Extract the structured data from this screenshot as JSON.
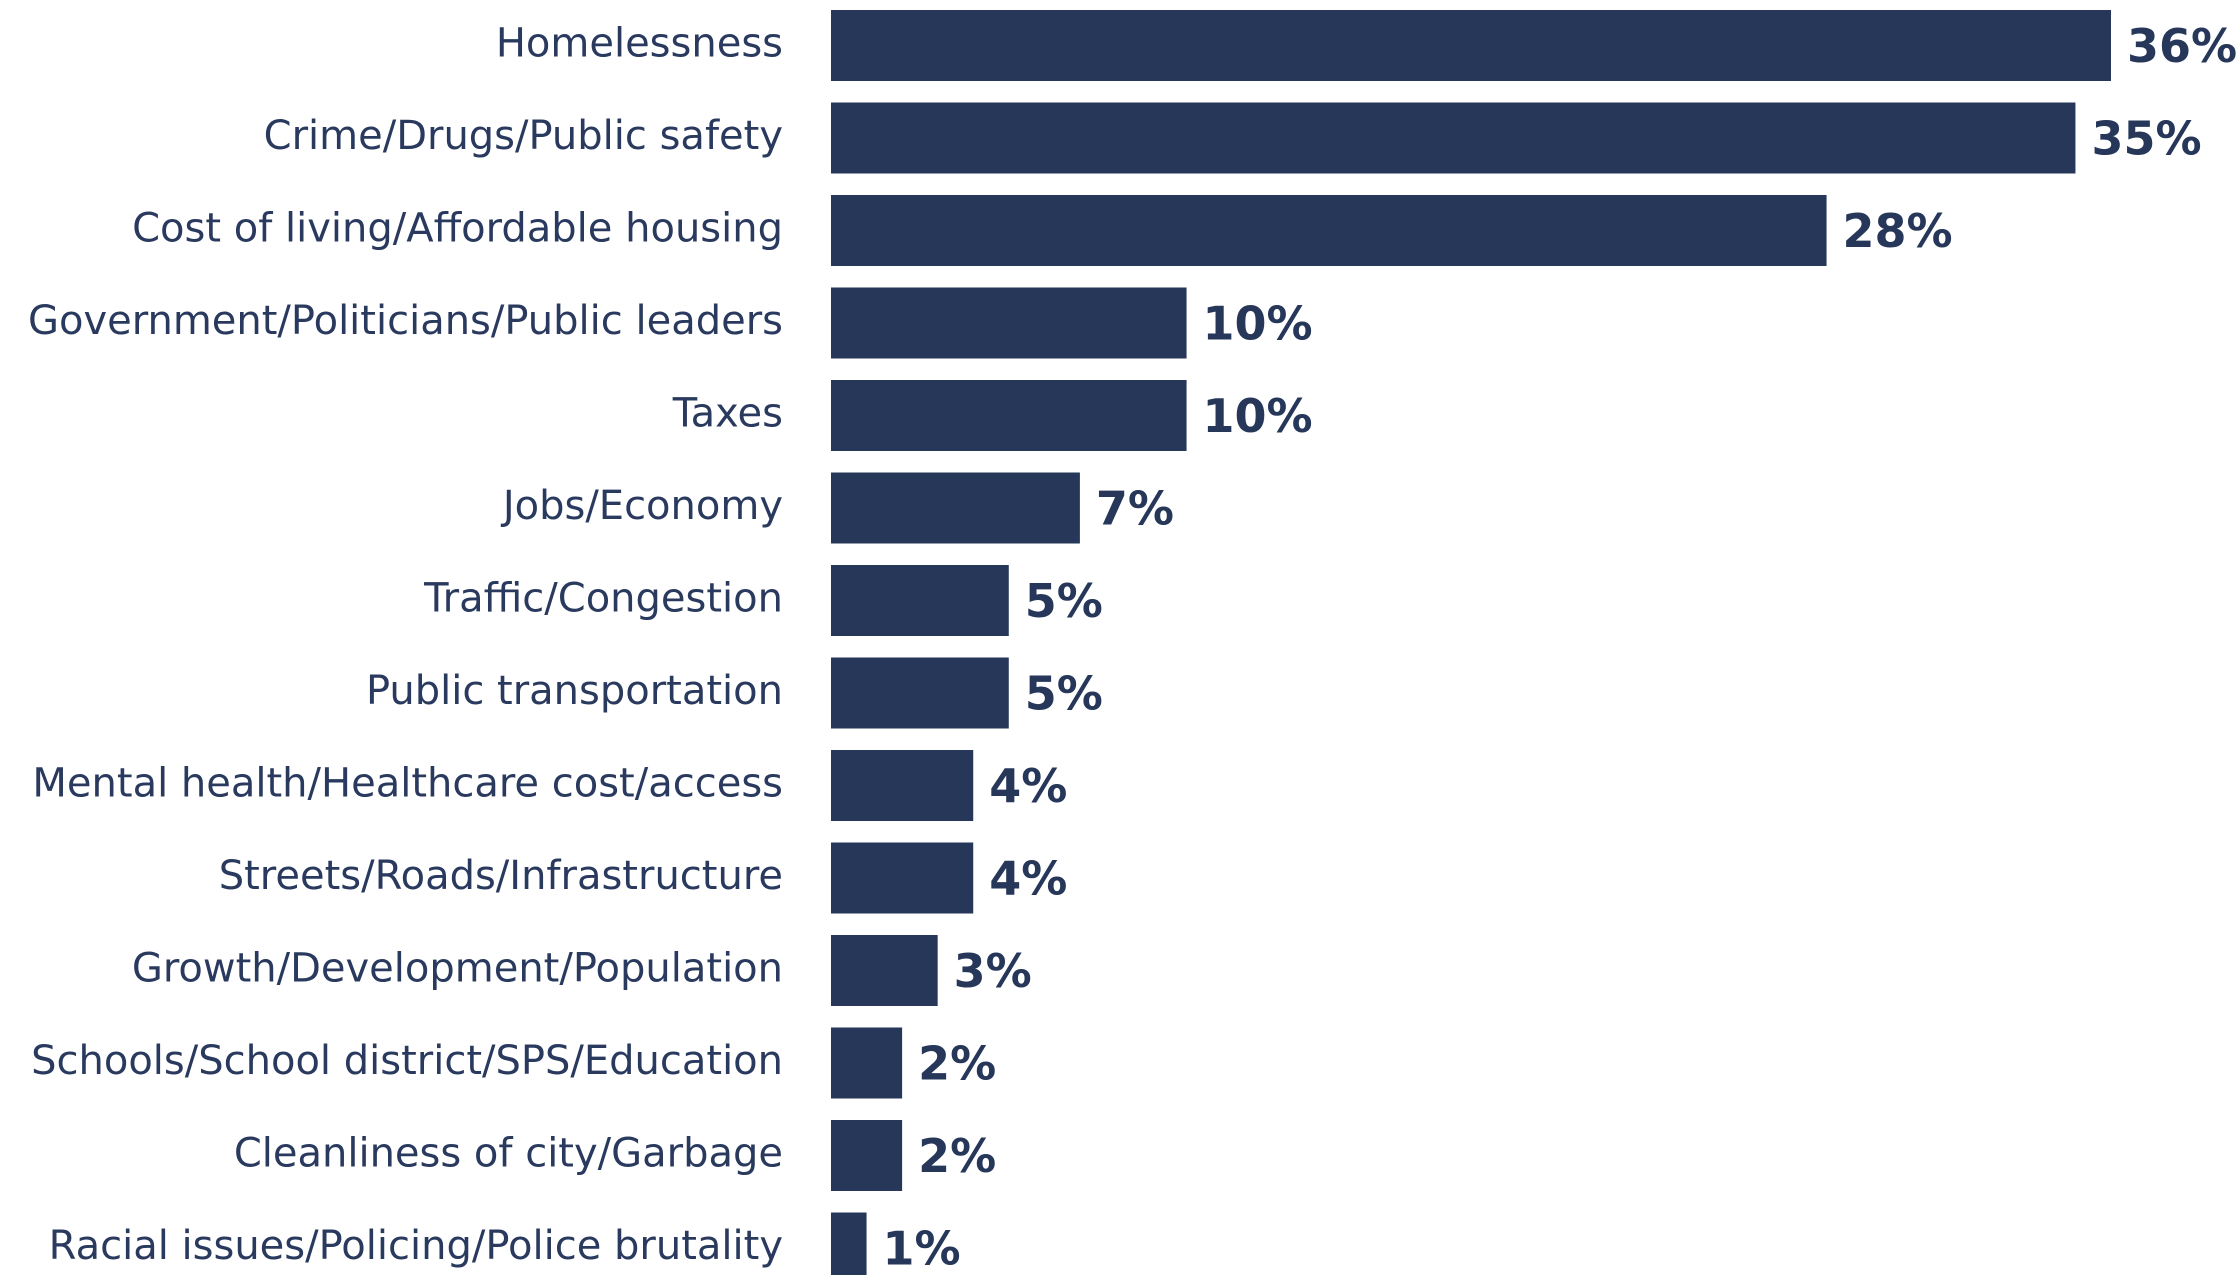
{
  "chart_data": {
    "type": "bar",
    "orientation": "horizontal",
    "color": "#263759",
    "categories": [
      "Homelessness",
      "Crime/Drugs/Public safety",
      "Cost of living/Affordable housing",
      "Government/Politicians/Public leaders",
      "Taxes",
      "Jobs/Economy",
      "Traffic/Congestion",
      "Public transportation",
      "Mental health/Healthcare cost/access",
      "Streets/Roads/Infrastructure",
      "Growth/Development/Population",
      "Schools/School district/SPS/Education",
      "Cleanliness of city/Garbage",
      "Racial issues/Policing/Police brutality"
    ],
    "values": [
      36,
      35,
      28,
      10,
      10,
      7,
      5,
      5,
      4,
      4,
      3,
      2,
      2,
      1
    ],
    "value_labels": [
      "36%",
      "35%",
      "28%",
      "10%",
      "10%",
      "7%",
      "5%",
      "5%",
      "4%",
      "4%",
      "3%",
      "2%",
      "2%",
      "1%"
    ]
  }
}
